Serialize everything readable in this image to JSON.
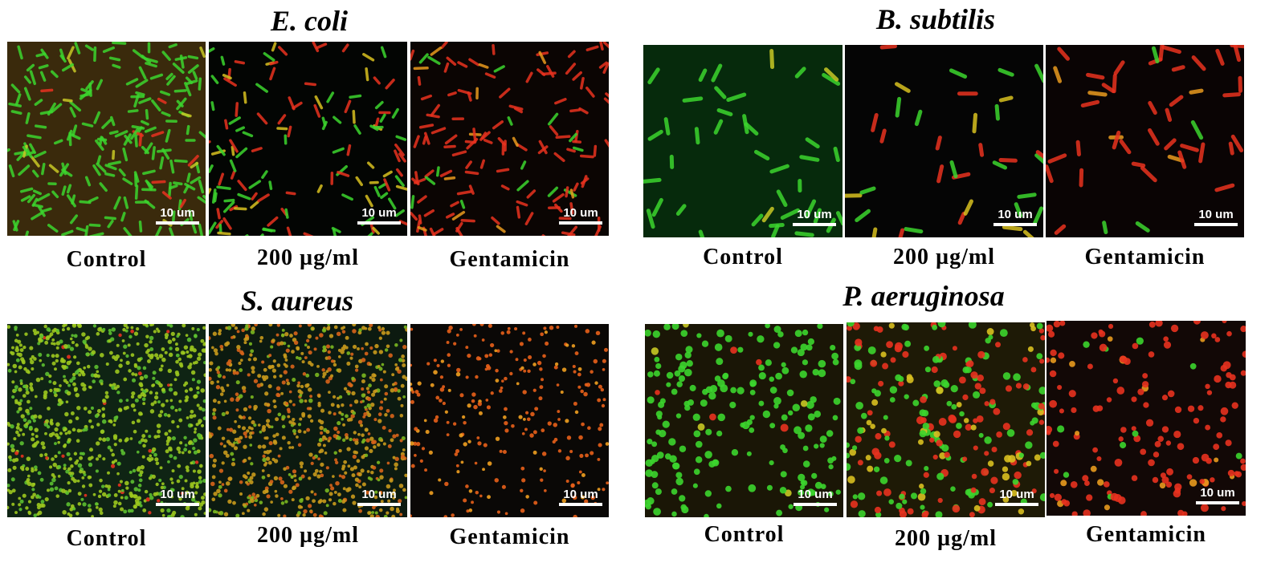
{
  "figure": {
    "groups": [
      {
        "organism": "E. coli",
        "panels": [
          {
            "caption": "Control",
            "scale_bar": "10 um",
            "dominant_stain": "green"
          },
          {
            "caption": "200 µg/ml",
            "scale_bar": "10 um",
            "dominant_stain": "mixed"
          },
          {
            "caption": "Gentamicin",
            "scale_bar": "10 um",
            "dominant_stain": "red"
          }
        ]
      },
      {
        "organism": "B. subtilis",
        "panels": [
          {
            "caption": "Control",
            "scale_bar": "10 um",
            "dominant_stain": "green"
          },
          {
            "caption": "200 µg/ml",
            "scale_bar": "10 um",
            "dominant_stain": "mixed"
          },
          {
            "caption": "Gentamicin",
            "scale_bar": "10 um",
            "dominant_stain": "red"
          }
        ]
      },
      {
        "organism": "S. aureus",
        "panels": [
          {
            "caption": "Control",
            "scale_bar": "10 um",
            "dominant_stain": "green"
          },
          {
            "caption": "200 µg/ml",
            "scale_bar": "10 um",
            "dominant_stain": "mixed"
          },
          {
            "caption": "Gentamicin",
            "scale_bar": "10 um",
            "dominant_stain": "red"
          }
        ]
      },
      {
        "organism": "P. aeruginosa",
        "panels": [
          {
            "caption": "Control",
            "scale_bar": "10 um",
            "dominant_stain": "green"
          },
          {
            "caption": "200 µg/ml",
            "scale_bar": "10 um",
            "dominant_stain": "mixed"
          },
          {
            "caption": "Gentamicin",
            "scale_bar": "10 um",
            "dominant_stain": "red"
          }
        ]
      }
    ],
    "colors": {
      "live_green": "#3cd52e",
      "dead_red": "#e8321f",
      "background": "#050805",
      "scale_bar": "#ffffff"
    }
  }
}
